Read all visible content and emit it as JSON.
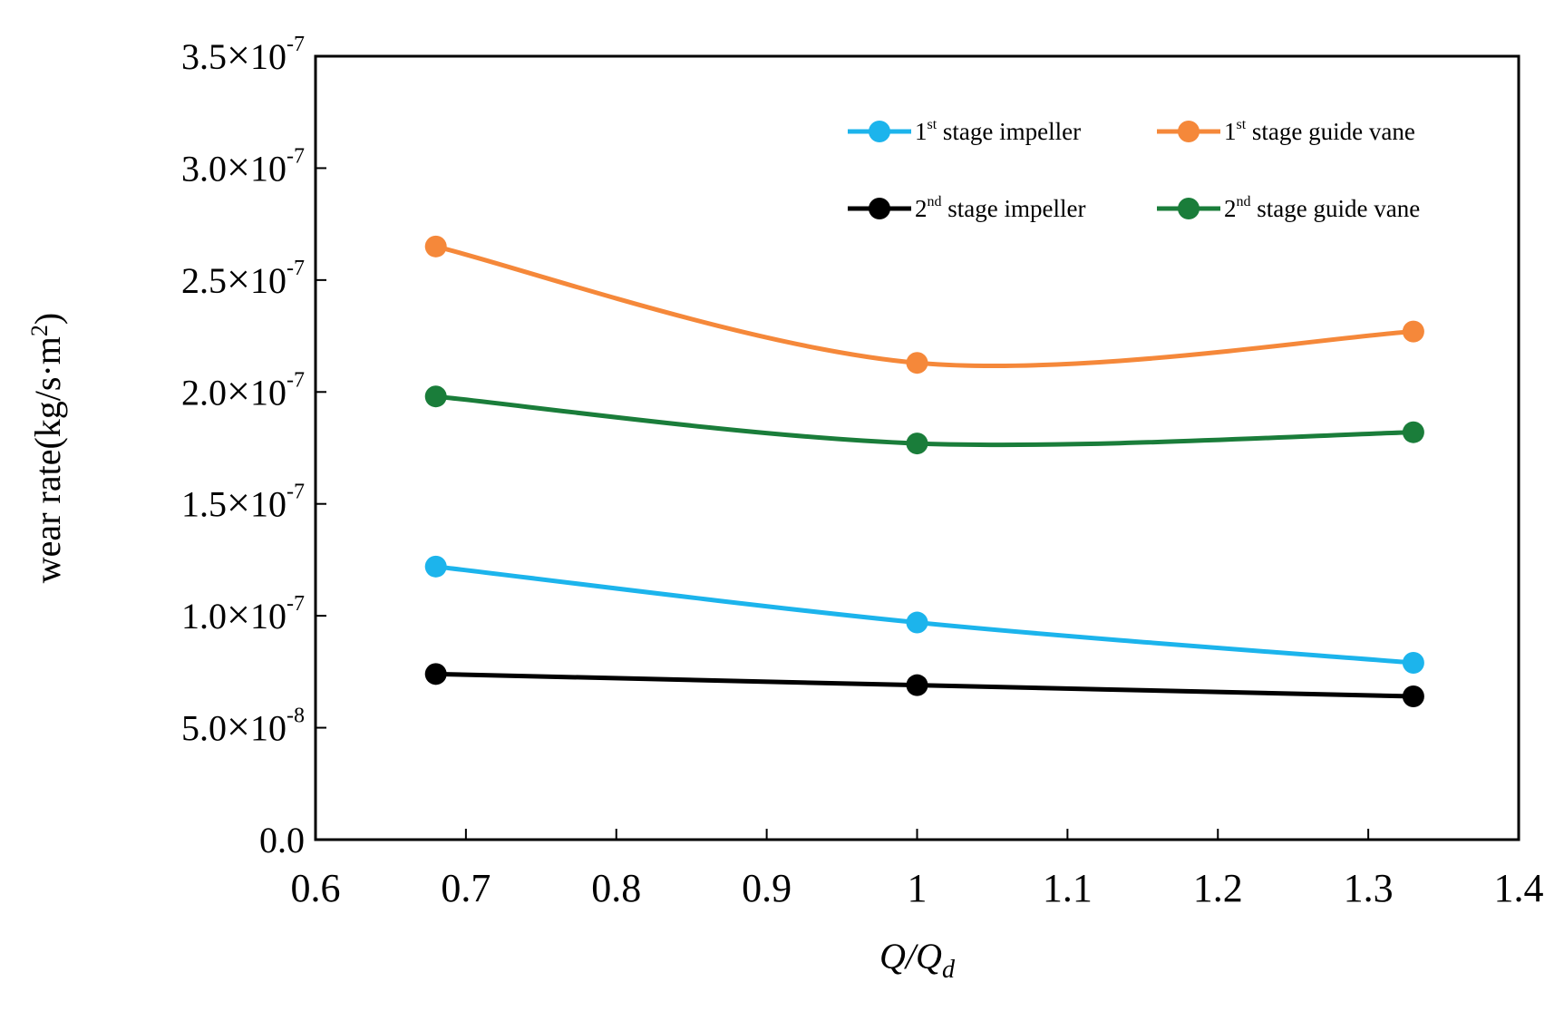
{
  "chart_data": {
    "type": "line",
    "title": "",
    "xlabel": "Q/Q",
    "xlabel_sub": "d",
    "ylabel": "wear rate(kg/s·m",
    "ylabel_sup": "2",
    "ylabel_close": ")",
    "xlim": [
      0.6,
      1.4
    ],
    "ylim": [
      0.0,
      3.5e-07
    ],
    "x_ticks": [
      0.6,
      0.7,
      0.8,
      0.9,
      1.0,
      1.1,
      1.2,
      1.3,
      1.4
    ],
    "x_tick_labels": [
      "0.6",
      "0.7",
      "0.8",
      "0.9",
      "1",
      "1.1",
      "1.2",
      "1.3",
      "1.4"
    ],
    "y_ticks": [
      0.0,
      5e-08,
      1e-07,
      1.5e-07,
      2e-07,
      2.5e-07,
      3e-07,
      3.5e-07
    ],
    "y_tick_labels": [
      {
        "mantissa": "0.0",
        "times": "",
        "base": "",
        "exp": ""
      },
      {
        "mantissa": "5.0",
        "times": "×",
        "base": "10",
        "exp": "-8"
      },
      {
        "mantissa": "1.0",
        "times": "×",
        "base": "10",
        "exp": "-7"
      },
      {
        "mantissa": "1.5",
        "times": "×",
        "base": "10",
        "exp": "-7"
      },
      {
        "mantissa": "2.0",
        "times": "×",
        "base": "10",
        "exp": "-7"
      },
      {
        "mantissa": "2.5",
        "times": "×",
        "base": "10",
        "exp": "-7"
      },
      {
        "mantissa": "3.0",
        "times": "×",
        "base": "10",
        "exp": "-7"
      },
      {
        "mantissa": "3.5",
        "times": "×",
        "base": "10",
        "exp": "-7"
      }
    ],
    "grid": false,
    "legend_position": "top-right",
    "series": [
      {
        "name_prefix": "1",
        "name_sup": "st",
        "name_suffix": " stage impeller",
        "color": "#1cb4ec",
        "x": [
          0.68,
          1.0,
          1.33
        ],
        "values": [
          1.22e-07,
          9.7e-08,
          7.9e-08
        ]
      },
      {
        "name_prefix": "1",
        "name_sup": "st",
        "name_suffix": " stage guide vane",
        "color": "#f5883a",
        "x": [
          0.68,
          1.0,
          1.33
        ],
        "values": [
          2.65e-07,
          2.13e-07,
          2.27e-07
        ]
      },
      {
        "name_prefix": "2",
        "name_sup": "nd",
        "name_suffix": " stage impeller",
        "color": "#000000",
        "x": [
          0.68,
          1.0,
          1.33
        ],
        "values": [
          7.4e-08,
          6.9e-08,
          6.4e-08
        ]
      },
      {
        "name_prefix": "2",
        "name_sup": "nd",
        "name_suffix": " stage guide vane",
        "color": "#1a7d3a",
        "x": [
          0.68,
          1.0,
          1.33
        ],
        "values": [
          1.98e-07,
          1.77e-07,
          1.82e-07
        ]
      }
    ]
  }
}
